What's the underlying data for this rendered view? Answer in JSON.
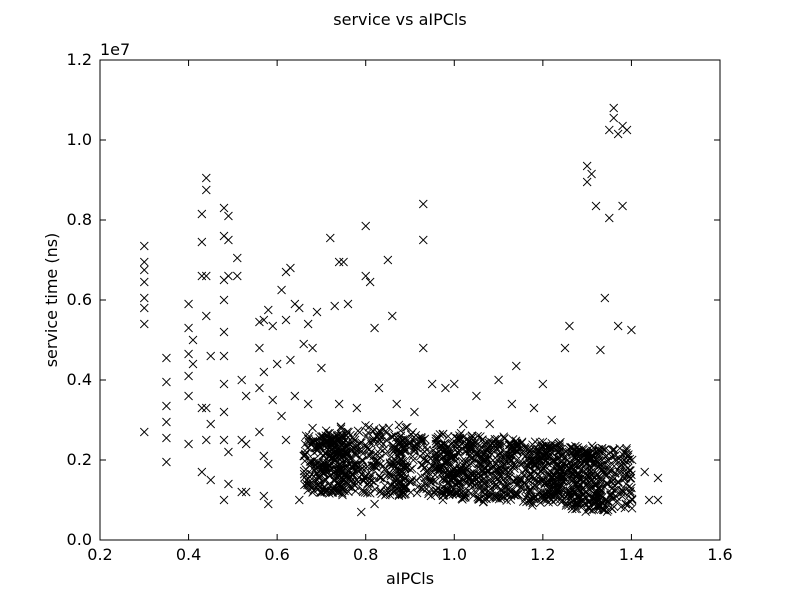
{
  "chart_data": {
    "type": "scatter",
    "title": "service vs aIPCls",
    "xlabel": "aIPCls",
    "ylabel": "service time (ns)",
    "y_offset_label": "1e7",
    "y_scale": 10000000,
    "xlim": [
      0.2,
      1.6
    ],
    "ylim": [
      0,
      12000000
    ],
    "x_ticks": [
      0.2,
      0.4,
      0.6,
      0.8,
      1.0,
      1.2,
      1.4,
      1.6
    ],
    "x_tick_labels": [
      "0.2",
      "0.4",
      "0.6",
      "0.8",
      "1.0",
      "1.2",
      "1.4",
      "1.6"
    ],
    "y_ticks": [
      0,
      2000000,
      4000000,
      6000000,
      8000000,
      10000000,
      12000000
    ],
    "y_tick_labels": [
      "0.0",
      "0.2",
      "0.4",
      "0.6",
      "0.8",
      "1.0",
      "1.2"
    ],
    "grid": false,
    "marker": "x",
    "marker_color": "#000000",
    "series": [
      {
        "x": [
          0.3,
          0.3,
          0.3,
          0.3,
          0.3,
          0.3,
          0.3,
          0.3,
          0.35,
          0.35,
          0.35,
          0.35,
          0.35,
          0.35,
          0.4,
          0.4,
          0.4,
          0.4,
          0.4,
          0.4,
          0.41,
          0.41,
          0.43,
          0.43,
          0.43,
          0.43,
          0.43,
          0.44,
          0.44,
          0.44,
          0.44,
          0.44,
          0.44,
          0.45,
          0.45,
          0.45,
          0.48,
          0.48,
          0.48,
          0.48,
          0.48,
          0.48,
          0.48,
          0.48,
          0.48,
          0.48,
          0.49,
          0.49,
          0.49,
          0.49,
          0.49,
          0.51,
          0.51,
          0.52,
          0.52,
          0.52,
          0.53,
          0.53,
          0.53,
          0.56,
          0.56,
          0.56,
          0.56,
          0.57,
          0.57,
          0.57,
          0.57,
          0.58,
          0.58,
          0.58,
          0.59,
          0.59,
          0.6,
          0.61,
          0.61,
          0.62,
          0.62,
          0.62,
          0.63,
          0.63,
          0.64,
          0.64,
          0.65,
          0.65,
          0.66,
          0.66,
          0.67,
          0.67,
          0.68,
          0.68,
          0.69,
          0.7,
          0.7,
          0.72,
          0.73,
          0.74,
          0.74,
          0.75,
          0.76,
          0.78,
          0.78,
          0.79,
          0.8,
          0.8,
          0.8,
          0.81,
          0.82,
          0.82,
          0.83,
          0.85,
          0.86,
          0.87,
          0.89,
          0.91,
          0.93,
          0.93,
          0.93,
          0.95,
          0.98,
          1.0,
          1.02,
          1.05,
          1.08,
          1.1,
          1.13,
          1.14,
          1.18,
          1.2,
          1.22,
          1.25,
          1.26,
          1.28,
          1.3,
          1.3,
          1.31,
          1.32,
          1.33,
          1.34,
          1.35,
          1.35,
          1.36,
          1.36,
          1.37,
          1.37,
          1.38,
          1.38,
          1.39,
          1.4,
          1.4,
          1.43,
          1.44,
          1.46,
          1.46
        ],
        "y": [
          7350000,
          6950000,
          6750000,
          6450000,
          6050000,
          5800000,
          5400000,
          2700000,
          4550000,
          3950000,
          3350000,
          2950000,
          2550000,
          1950000,
          5900000,
          5300000,
          4650000,
          4100000,
          3600000,
          2400000,
          5000000,
          4400000,
          8150000,
          7450000,
          6600000,
          3300000,
          1700000,
          9050000,
          8750000,
          6600000,
          5600000,
          3300000,
          2500000,
          4600000,
          2900000,
          1500000,
          8300000,
          7600000,
          6500000,
          6000000,
          5200000,
          4600000,
          3900000,
          3200000,
          2500000,
          1000000,
          8100000,
          7500000,
          6600000,
          2200000,
          1400000,
          7050000,
          6600000,
          4000000,
          2500000,
          1200000,
          3600000,
          2400000,
          1200000,
          5450000,
          4800000,
          3800000,
          2700000,
          5500000,
          4200000,
          2100000,
          1100000,
          5750000,
          1900000,
          900000,
          5350000,
          3500000,
          4400000,
          6250000,
          3100000,
          6700000,
          5500000,
          2500000,
          6800000,
          4500000,
          5900000,
          3600000,
          5800000,
          1000000,
          4900000,
          2100000,
          5400000,
          3400000,
          4800000,
          2800000,
          5700000,
          4300000,
          2500000,
          7550000,
          5850000,
          6950000,
          3400000,
          6950000,
          5900000,
          3300000,
          1500000,
          700000,
          7850000,
          6600000,
          1800000,
          6450000,
          5300000,
          900000,
          3800000,
          7000000,
          5600000,
          3400000,
          1300000,
          3200000,
          8400000,
          7500000,
          4800000,
          3900000,
          3800000,
          3900000,
          2900000,
          3600000,
          2900000,
          4000000,
          3400000,
          4350000,
          3300000,
          3900000,
          3000000,
          4800000,
          5350000,
          2200000,
          9350000,
          8950000,
          9150000,
          8350000,
          4750000,
          6050000,
          10250000,
          8050000,
          10800000,
          10550000,
          5350000,
          10150000,
          10350000,
          8350000,
          10250000,
          5250000,
          1300000,
          1700000,
          1000000,
          1550000,
          1000000
        ]
      }
    ],
    "dense_region": {
      "description_points": [
        [
          0.72,
          1900000,
          0.1,
          900000
        ],
        [
          0.8,
          2000000,
          0.16,
          1100000
        ],
        [
          0.95,
          1900000,
          0.16,
          1000000
        ],
        [
          1.05,
          1800000,
          0.16,
          1000000
        ],
        [
          1.15,
          1700000,
          0.16,
          950000
        ],
        [
          1.25,
          1600000,
          0.14,
          950000
        ],
        [
          1.33,
          1500000,
          0.12,
          1000000
        ]
      ]
    }
  }
}
